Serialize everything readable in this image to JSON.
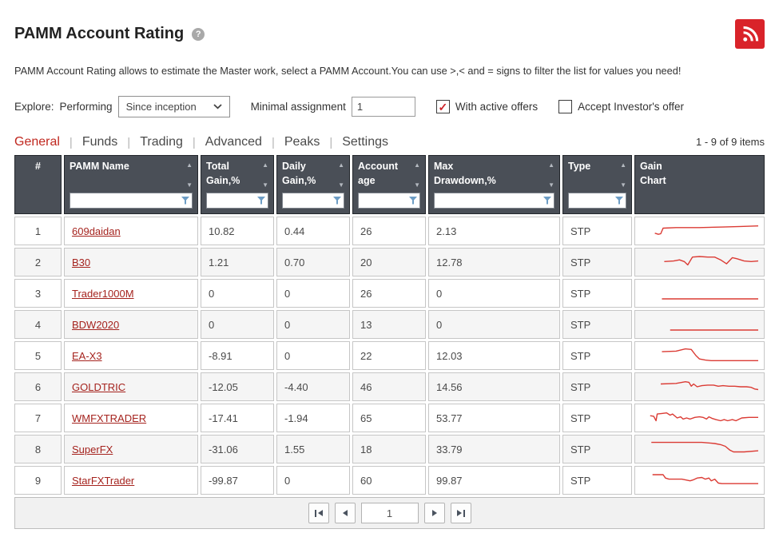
{
  "colors": {
    "accent_red": "#c0271e",
    "link_red": "#a5231e",
    "sparkline_red": "#db3b34",
    "rss_red": "#d9232a",
    "header_bg": "#4a4f57",
    "filter_icon_blue": "#6d9dc5"
  },
  "header": {
    "title": "PAMM Account Rating"
  },
  "description": "PAMM Account Rating allows to estimate the Master work, select a PAMM Account.You can use >,< and = signs to filter the list for values you need!",
  "controls": {
    "explore_label": "Explore:",
    "performing_label": "Performing",
    "performing_value": "Since inception",
    "minimal_assignment_label": "Minimal assignment",
    "minimal_assignment_value": "1",
    "checkbox_active_offers": {
      "label": "With active offers",
      "checked": true
    },
    "checkbox_accept_investor": {
      "label": "Accept Investor's offer",
      "checked": false
    }
  },
  "tabs": [
    {
      "label": "General",
      "active": true
    },
    {
      "label": "Funds",
      "active": false
    },
    {
      "label": "Trading",
      "active": false
    },
    {
      "label": "Advanced",
      "active": false
    },
    {
      "label": "Peaks",
      "active": false
    },
    {
      "label": "Settings",
      "active": false
    }
  ],
  "items_count": "1 - 9 of 9 items",
  "table": {
    "columns": [
      {
        "key": "num",
        "label": "#",
        "sortable": false,
        "filterable": false,
        "align": "center"
      },
      {
        "key": "name",
        "label": "PAMM Name",
        "sortable": true,
        "filterable": true
      },
      {
        "key": "total_gain",
        "label": "Total\nGain,%",
        "sortable": true,
        "filterable": true
      },
      {
        "key": "daily_gain",
        "label": "Daily\nGain,%",
        "sortable": true,
        "filterable": true
      },
      {
        "key": "age",
        "label": "Account\nage",
        "sortable": true,
        "filterable": true
      },
      {
        "key": "max_drawdown",
        "label": "Max\nDrawdown,%",
        "sortable": true,
        "filterable": true
      },
      {
        "key": "type",
        "label": "Type",
        "sortable": true,
        "filterable": true
      },
      {
        "key": "chart",
        "label": "Gain\nChart",
        "sortable": false,
        "filterable": false
      }
    ],
    "rows": [
      {
        "num": "1",
        "name": "609daidan",
        "total_gain": "10.82",
        "daily_gain": "0.44",
        "age": "26",
        "max_drawdown": "2.13",
        "type": "STP",
        "sparkline": [
          [
            12,
            24
          ],
          [
            15,
            26
          ],
          [
            17,
            25
          ],
          [
            19,
            15
          ],
          [
            30,
            14
          ],
          [
            50,
            14
          ],
          [
            70,
            13
          ],
          [
            85,
            12
          ],
          [
            100,
            11
          ]
        ]
      },
      {
        "num": "2",
        "name": "B30",
        "total_gain": "1.21",
        "daily_gain": "0.70",
        "age": "20",
        "max_drawdown": "12.78",
        "type": "STP",
        "sparkline": [
          [
            20,
            19
          ],
          [
            28,
            18
          ],
          [
            33,
            16
          ],
          [
            37,
            19
          ],
          [
            40,
            25
          ],
          [
            44,
            11
          ],
          [
            50,
            10
          ],
          [
            57,
            11
          ],
          [
            63,
            11
          ],
          [
            68,
            16
          ],
          [
            73,
            23
          ],
          [
            78,
            12
          ],
          [
            82,
            14
          ],
          [
            88,
            18
          ],
          [
            94,
            19
          ],
          [
            100,
            18
          ]
        ]
      },
      {
        "num": "3",
        "name": "Trader1000M",
        "total_gain": "0",
        "daily_gain": "0",
        "age": "26",
        "max_drawdown": "0",
        "type": "STP",
        "sparkline": [
          [
            18,
            30
          ],
          [
            100,
            30
          ]
        ]
      },
      {
        "num": "4",
        "name": "BDW2020",
        "total_gain": "0",
        "daily_gain": "0",
        "age": "13",
        "max_drawdown": "0",
        "type": "STP",
        "sparkline": [
          [
            25,
            30
          ],
          [
            100,
            30
          ]
        ]
      },
      {
        "num": "5",
        "name": "EA-X3",
        "total_gain": "-8.91",
        "daily_gain": "0",
        "age": "22",
        "max_drawdown": "12.03",
        "type": "STP",
        "sparkline": [
          [
            18,
            13
          ],
          [
            30,
            12
          ],
          [
            38,
            8
          ],
          [
            43,
            9
          ],
          [
            47,
            20
          ],
          [
            50,
            26
          ],
          [
            55,
            28
          ],
          [
            60,
            29
          ],
          [
            100,
            29
          ]
        ]
      },
      {
        "num": "6",
        "name": "GOLDTRIC",
        "total_gain": "-12.05",
        "daily_gain": "-4.40",
        "age": "46",
        "max_drawdown": "14.56",
        "type": "STP",
        "sparkline": [
          [
            17,
            15
          ],
          [
            30,
            14
          ],
          [
            38,
            11
          ],
          [
            41,
            12
          ],
          [
            43,
            19
          ],
          [
            45,
            15
          ],
          [
            48,
            20
          ],
          [
            52,
            18
          ],
          [
            57,
            17
          ],
          [
            62,
            17
          ],
          [
            66,
            19
          ],
          [
            70,
            18
          ],
          [
            75,
            19
          ],
          [
            80,
            19
          ],
          [
            85,
            20
          ],
          [
            90,
            20
          ],
          [
            94,
            21
          ],
          [
            97,
            24
          ],
          [
            100,
            25
          ]
        ]
      },
      {
        "num": "7",
        "name": "WMFXTRADER",
        "total_gain": "-17.41",
        "daily_gain": "-1.94",
        "age": "65",
        "max_drawdown": "53.77",
        "type": "STP",
        "sparkline": [
          [
            8,
            16
          ],
          [
            11,
            17
          ],
          [
            13,
            25
          ],
          [
            14,
            13
          ],
          [
            18,
            12
          ],
          [
            22,
            11
          ],
          [
            25,
            15
          ],
          [
            27,
            13
          ],
          [
            31,
            20
          ],
          [
            34,
            18
          ],
          [
            36,
            22
          ],
          [
            39,
            20
          ],
          [
            42,
            22
          ],
          [
            46,
            19
          ],
          [
            50,
            18
          ],
          [
            53,
            19
          ],
          [
            56,
            22
          ],
          [
            58,
            18
          ],
          [
            61,
            21
          ],
          [
            64,
            23
          ],
          [
            68,
            25
          ],
          [
            71,
            23
          ],
          [
            74,
            25
          ],
          [
            78,
            23
          ],
          [
            81,
            25
          ],
          [
            86,
            20
          ],
          [
            92,
            19
          ],
          [
            100,
            19
          ]
        ]
      },
      {
        "num": "8",
        "name": "SuperFX",
        "total_gain": "-31.06",
        "daily_gain": "1.55",
        "age": "18",
        "max_drawdown": "33.79",
        "type": "STP",
        "sparkline": [
          [
            9,
            8
          ],
          [
            52,
            8
          ],
          [
            58,
            9
          ],
          [
            63,
            10
          ],
          [
            68,
            12
          ],
          [
            72,
            15
          ],
          [
            76,
            22
          ],
          [
            79,
            25
          ],
          [
            82,
            25
          ],
          [
            88,
            25
          ],
          [
            100,
            23
          ]
        ]
      },
      {
        "num": "9",
        "name": "StarFXTrader",
        "total_gain": "-99.87",
        "daily_gain": "0",
        "age": "60",
        "max_drawdown": "99.87",
        "type": "STP",
        "sparkline": [
          [
            10,
            10
          ],
          [
            19,
            10
          ],
          [
            21,
            16
          ],
          [
            24,
            18
          ],
          [
            35,
            18
          ],
          [
            42,
            21
          ],
          [
            45,
            19
          ],
          [
            48,
            16
          ],
          [
            52,
            15
          ],
          [
            55,
            18
          ],
          [
            58,
            16
          ],
          [
            60,
            21
          ],
          [
            63,
            18
          ],
          [
            66,
            25
          ],
          [
            69,
            26
          ],
          [
            100,
            26
          ]
        ]
      }
    ]
  },
  "pagination": {
    "page_value": "1"
  }
}
